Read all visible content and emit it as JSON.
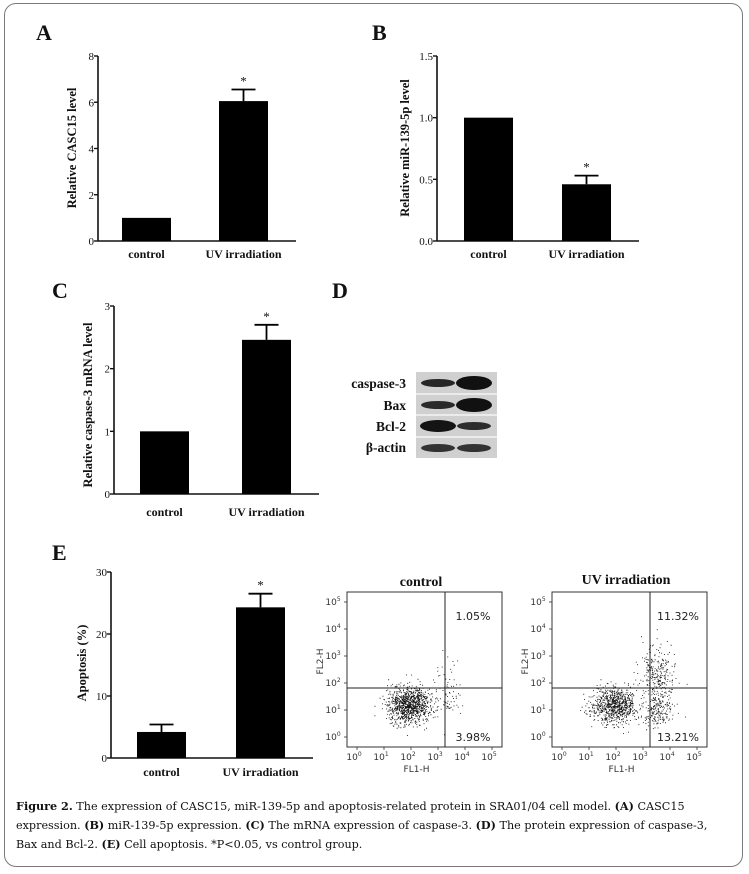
{
  "panels": {
    "A": {
      "letter": "A",
      "ylabel": "Relative CASC15 level",
      "categories": [
        "control",
        "UV irradiation"
      ],
      "ticks": [
        "0",
        "2",
        "4",
        "6",
        "8"
      ],
      "star": "*"
    },
    "B": {
      "letter": "B",
      "ylabel": "Relative miR-139-5p level",
      "categories": [
        "control",
        "UV irradiation"
      ],
      "ticks": [
        "0.0",
        "0.5",
        "1.0",
        "1.5"
      ],
      "star": "*"
    },
    "C": {
      "letter": "C",
      "ylabel": "Relative caspase-3 mRNA level",
      "categories": [
        "control",
        "UV irradiation"
      ],
      "ticks": [
        "0",
        "1",
        "2",
        "3"
      ],
      "star": "*"
    },
    "D": {
      "letter": "D",
      "labels": [
        "caspase-3",
        "Bax",
        "Bcl-2",
        "β-actin"
      ]
    },
    "E": {
      "letter": "E",
      "ylabel": "Apoptosis (%)",
      "categories": [
        "control",
        "UV irradiation"
      ],
      "ticks": [
        "0",
        "10",
        "20",
        "30"
      ],
      "star": "*"
    }
  },
  "flow": {
    "control": {
      "title": "control",
      "ur": "1.05%",
      "lr": "3.98%"
    },
    "uv": {
      "title": "UV irradiation",
      "ur": "11.32%",
      "lr": "13.21%"
    },
    "xlabel": "FL1-H",
    "ylabel": "FL2-H",
    "ticks": [
      "10",
      "10",
      "10",
      "10",
      "10",
      "10"
    ],
    "exps": [
      "0",
      "1",
      "2",
      "3",
      "4",
      "5"
    ]
  },
  "caption": {
    "fig": "Figure 2.",
    "text1": " The expression of CASC15, miR-139-5p and apoptosis-related protein in SRA01/04 cell model. ",
    "a": "(A)",
    "a_text": " CASC15 expression. ",
    "b": "(B)",
    "b_text": " miR-139-5p expression. ",
    "c": "(C)",
    "c_text": " The mRNA expression of caspase-3. ",
    "d": "(D)",
    "d_text": " The protein expression of caspase-3, Bax and Bcl-2. ",
    "e": "(E)",
    "e_text": " Cell apoptosis. *P<0.05, vs control group."
  },
  "chart_data": [
    {
      "type": "bar",
      "panel": "A",
      "categories": [
        "control",
        "UV irradiation"
      ],
      "values": [
        1.0,
        6.05
      ],
      "errors": [
        0,
        0.5
      ],
      "ylabel": "Relative CASC15 level",
      "ylim": [
        0,
        8
      ]
    },
    {
      "type": "bar",
      "panel": "B",
      "categories": [
        "control",
        "UV irradiation"
      ],
      "values": [
        1.0,
        0.46
      ],
      "errors": [
        0,
        0.07
      ],
      "ylabel": "Relative miR-139-5p level",
      "ylim": [
        0,
        1.5
      ]
    },
    {
      "type": "bar",
      "panel": "C",
      "categories": [
        "control",
        "UV irradiation"
      ],
      "values": [
        1.0,
        2.46
      ],
      "errors": [
        0,
        0.24
      ],
      "ylabel": "Relative caspase-3 mRNA level",
      "ylim": [
        0,
        3
      ]
    },
    {
      "type": "bar",
      "panel": "E",
      "categories": [
        "control",
        "UV irradiation"
      ],
      "values": [
        4.2,
        24.3
      ],
      "errors": [
        1.2,
        2.2
      ],
      "ylabel": "Apoptosis (%)",
      "ylim": [
        0,
        30
      ]
    }
  ]
}
